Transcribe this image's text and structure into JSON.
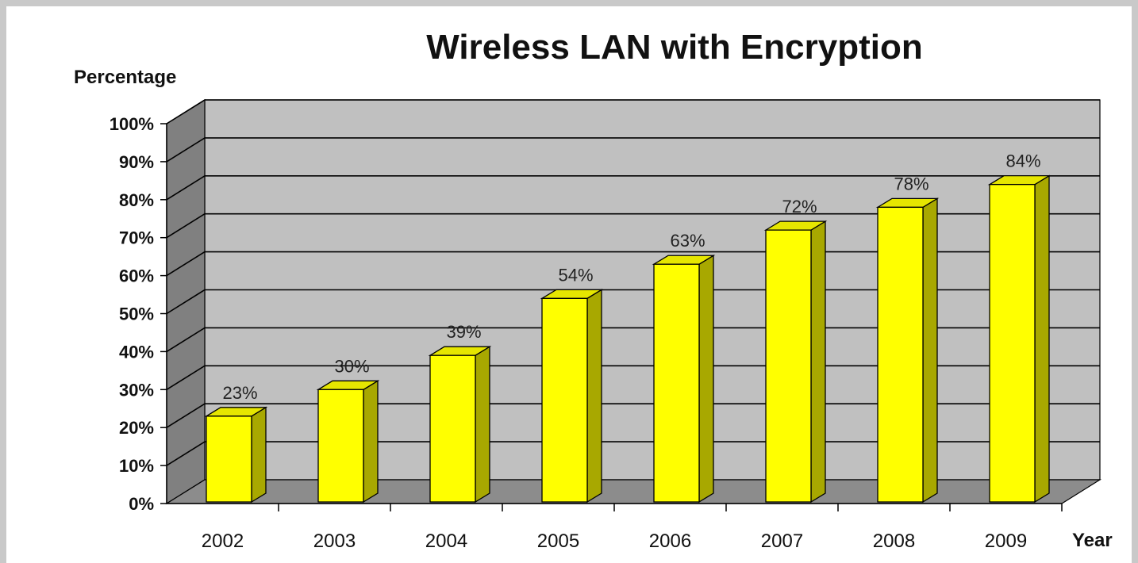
{
  "chart_data": {
    "type": "bar",
    "title": "Wireless LAN with Encryption",
    "xlabel": "Year",
    "ylabel": "Percentage",
    "categories": [
      "2002",
      "2003",
      "2004",
      "2005",
      "2006",
      "2007",
      "2008",
      "2009"
    ],
    "values": [
      23,
      30,
      39,
      54,
      63,
      72,
      78,
      84
    ],
    "data_labels": [
      "23%",
      "30%",
      "39%",
      "54%",
      "63%",
      "72%",
      "78%",
      "84%"
    ],
    "yticks": [
      "0%",
      "10%",
      "20%",
      "30%",
      "40%",
      "50%",
      "60%",
      "70%",
      "80%",
      "90%",
      "100%"
    ],
    "ylim": [
      0,
      100
    ],
    "grid": true,
    "style": "3d",
    "colors": {
      "bar_front": "#ffff00",
      "bar_top": "#e6e600",
      "bar_side": "#a8a800",
      "back_wall": "#c0c0c0",
      "side_wall": "#808080",
      "floor": "#8c8c8c"
    }
  }
}
